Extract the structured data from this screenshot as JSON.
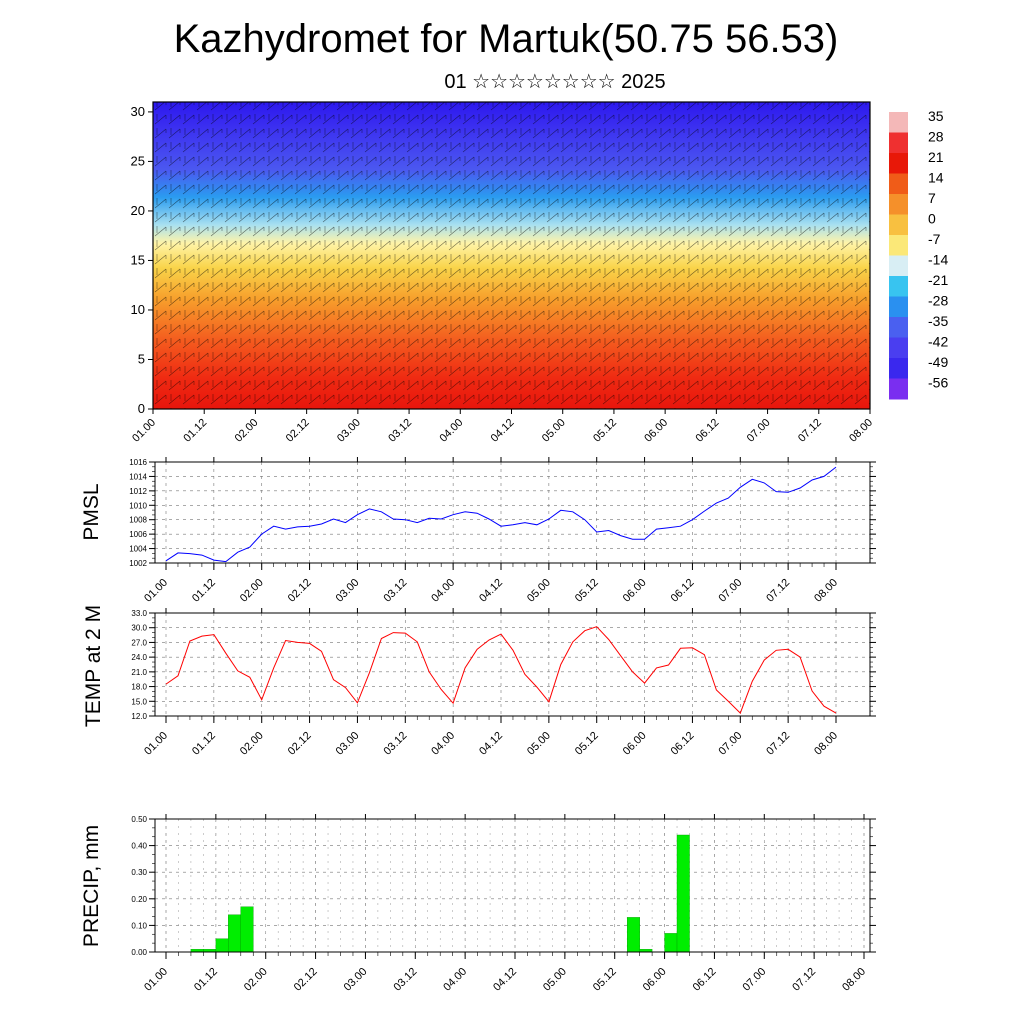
{
  "title": "Kazhydromet for Martuk(50.75 56.53)",
  "subtitle": "01 ☆☆☆☆☆☆☆☆ 2025",
  "time_ticks": [
    "01.00",
    "01.12",
    "02.00",
    "02.12",
    "03.00",
    "03.12",
    "04.00",
    "04.12",
    "05.00",
    "05.12",
    "06.00",
    "06.12",
    "07.00",
    "07.12",
    "08.00"
  ],
  "chart_data": [
    {
      "name": "cross-section",
      "type": "heatmap",
      "y_ticks": [
        "0",
        "5",
        "10",
        "15",
        "20",
        "25",
        "30"
      ],
      "ylim": [
        0,
        31
      ],
      "colorbar": {
        "labels": [
          "35",
          "28",
          "21",
          "14",
          "7",
          "0",
          "-7",
          "-14",
          "-21",
          "-28",
          "-35",
          "-42",
          "-49",
          "-56"
        ]
      }
    },
    {
      "name": "pmsl",
      "type": "line",
      "ylabel": "PMSL",
      "ylim": [
        1002,
        1016
      ],
      "y_ticks": [
        "1016",
        "1014",
        "1012",
        "1010",
        "1008",
        "1006",
        "1004",
        "1002"
      ],
      "color": "#0000ff",
      "values": [
        1002.3,
        1003.4,
        1003.3,
        1003.1,
        1002.4,
        1002.2,
        1003.5,
        1004.2,
        1006.0,
        1007.1,
        1006.7,
        1007.0,
        1007.1,
        1007.4,
        1008.1,
        1007.6,
        1008.7,
        1009.5,
        1009.1,
        1008.1,
        1008.0,
        1007.6,
        1008.2,
        1008.1,
        1008.7,
        1009.1,
        1008.9,
        1008.1,
        1007.1,
        1007.3,
        1007.6,
        1007.3,
        1008.1,
        1009.3,
        1009.1,
        1008.0,
        1006.3,
        1006.5,
        1005.8,
        1005.3,
        1005.3,
        1006.7,
        1006.9,
        1007.1,
        1008.0,
        1009.2,
        1010.3,
        1011.0,
        1012.5,
        1013.6,
        1013.1,
        1011.9,
        1011.8,
        1012.4,
        1013.5,
        1014.0,
        1015.3
      ]
    },
    {
      "name": "temp2m",
      "type": "line",
      "ylabel": "TEMP at 2 M",
      "ylim": [
        12,
        33
      ],
      "y_ticks": [
        "33.0",
        "30.0",
        "27.0",
        "24.0",
        "21.0",
        "18.0",
        "15.0",
        "12.0"
      ],
      "color": "#ff0000",
      "values": [
        18.5,
        20.2,
        27.3,
        28.3,
        28.6,
        24.8,
        21.2,
        19.9,
        15.3,
        21.8,
        27.4,
        27.0,
        26.8,
        25.2,
        19.4,
        17.8,
        14.7,
        20.8,
        27.8,
        29.0,
        28.9,
        27.1,
        21.0,
        17.4,
        14.6,
        21.8,
        25.6,
        27.5,
        28.7,
        25.4,
        20.5,
        17.9,
        14.9,
        22.5,
        27.1,
        29.4,
        30.2,
        27.6,
        24.3,
        21.0,
        18.7,
        21.8,
        22.4,
        25.8,
        25.9,
        24.5,
        17.3,
        15.0,
        12.6,
        19.1,
        23.4,
        25.4,
        25.6,
        24.0,
        17.1,
        14.0,
        12.6
      ]
    },
    {
      "name": "precip",
      "type": "bar",
      "ylabel": "PRECIP, mm",
      "ylim": [
        0,
        0.5
      ],
      "y_ticks": [
        "0.50",
        "0.40",
        "0.30",
        "0.20",
        "0.10",
        "0.00"
      ],
      "color": "#00ee00",
      "values": [
        0,
        0,
        0.01,
        0.01,
        0.05,
        0.14,
        0.17,
        0,
        0,
        0,
        0,
        0,
        0,
        0,
        0,
        0,
        0,
        0,
        0,
        0,
        0,
        0,
        0,
        0,
        0,
        0,
        0,
        0,
        0,
        0,
        0,
        0,
        0,
        0,
        0,
        0,
        0,
        0.13,
        0.01,
        0,
        0.07,
        0.44,
        0,
        0,
        0,
        0,
        0,
        0,
        0,
        0,
        0,
        0,
        0,
        0,
        0,
        0,
        0
      ]
    }
  ]
}
